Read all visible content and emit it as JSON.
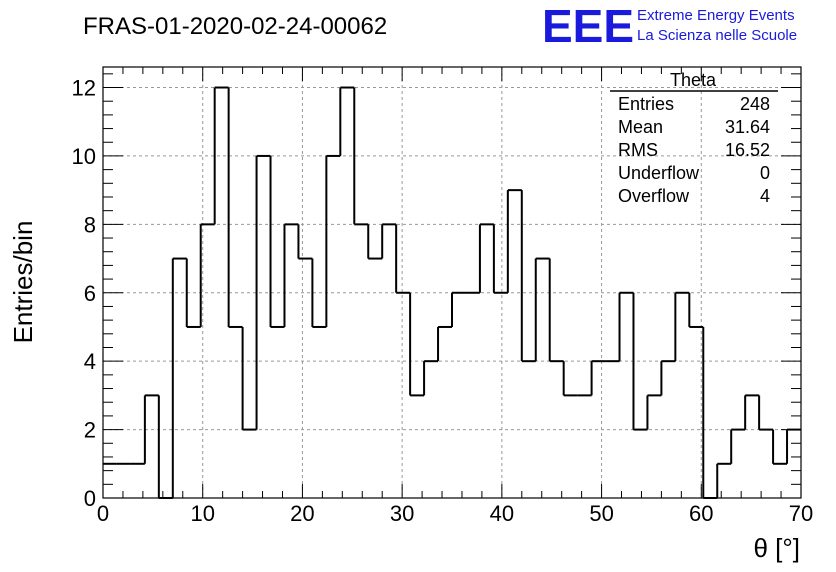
{
  "chart_data": {
    "type": "bar",
    "title": "FRAS-01-2020-02-24-00062",
    "xlabel": "θ [°]",
    "ylabel": "Entries/bin",
    "xlim": [
      0,
      70
    ],
    "ylim": [
      0,
      12.6
    ],
    "bin_width": 1.4,
    "grid": true,
    "x_ticks": [
      0,
      10,
      20,
      30,
      40,
      50,
      60,
      70
    ],
    "y_ticks": [
      0,
      2,
      4,
      6,
      8,
      10,
      12
    ],
    "values": [
      1,
      1,
      1,
      3,
      0,
      7,
      5,
      8,
      12,
      5,
      2,
      10,
      5,
      8,
      7,
      5,
      10,
      12,
      8,
      7,
      8,
      6,
      3,
      4,
      5,
      6,
      6,
      8,
      6,
      9,
      4,
      7,
      4,
      3,
      3,
      4,
      4,
      6,
      2,
      3,
      4,
      6,
      5,
      0,
      1,
      2,
      3,
      2,
      1,
      2
    ]
  },
  "stats_box": {
    "title": "Theta",
    "rows": [
      {
        "label": "Entries",
        "value": "248"
      },
      {
        "label": "Mean",
        "value": "31.64"
      },
      {
        "label": "RMS",
        "value": "16.52"
      },
      {
        "label": "Underflow",
        "value": "0"
      },
      {
        "label": "Overflow",
        "value": "4"
      }
    ]
  },
  "logo": {
    "mark": "EEE",
    "line1": "Extreme Energy Events",
    "line2": "La Scienza nelle Scuole",
    "color": "#1a1adc"
  }
}
